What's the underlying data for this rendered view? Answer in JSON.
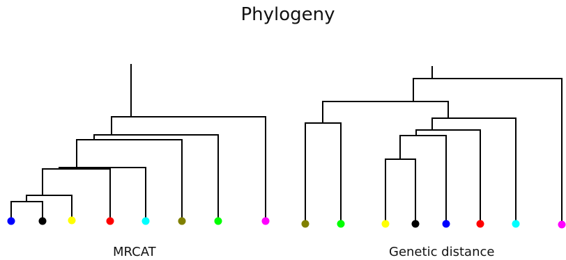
{
  "figure": {
    "title": "Phylogeny"
  },
  "left_tree": {
    "caption": "MRCAT",
    "leaves": [
      {
        "id": "L1",
        "color": "#0000ff"
      },
      {
        "id": "L2",
        "color": "#000000"
      },
      {
        "id": "L3",
        "color": "#ffff00"
      },
      {
        "id": "L4",
        "color": "#ff0000"
      },
      {
        "id": "L5",
        "color": "#00ffff"
      },
      {
        "id": "L6",
        "color": "#808000"
      },
      {
        "id": "L7",
        "color": "#00ff00"
      },
      {
        "id": "L8",
        "color": "#ff00ff"
      }
    ],
    "topology": [
      "L8",
      [
        "L7",
        [
          "L6",
          [
            "L5",
            [
              "L4",
              [
                "L3",
                [
                  "L1",
                  "L2"
                ]
              ]
            ]
          ]
        ]
      ]
    ]
  },
  "right_tree": {
    "caption": "Genetic distance",
    "leaves": [
      {
        "id": "R1",
        "color": "#808000"
      },
      {
        "id": "R2",
        "color": "#00ff00"
      },
      {
        "id": "R3",
        "color": "#ffff00"
      },
      {
        "id": "R4",
        "color": "#000000"
      },
      {
        "id": "R5",
        "color": "#0000ff"
      },
      {
        "id": "R6",
        "color": "#ff0000"
      },
      {
        "id": "R7",
        "color": "#00ffff"
      },
      {
        "id": "R8",
        "color": "#ff00ff"
      }
    ],
    "topology": [
      "R8",
      [
        [
          "R1",
          "R2"
        ],
        [
          "R7",
          [
            "R6",
            [
              "R5",
              [
                "R3",
                "R4"
              ]
            ]
          ]
        ]
      ]
    ]
  }
}
